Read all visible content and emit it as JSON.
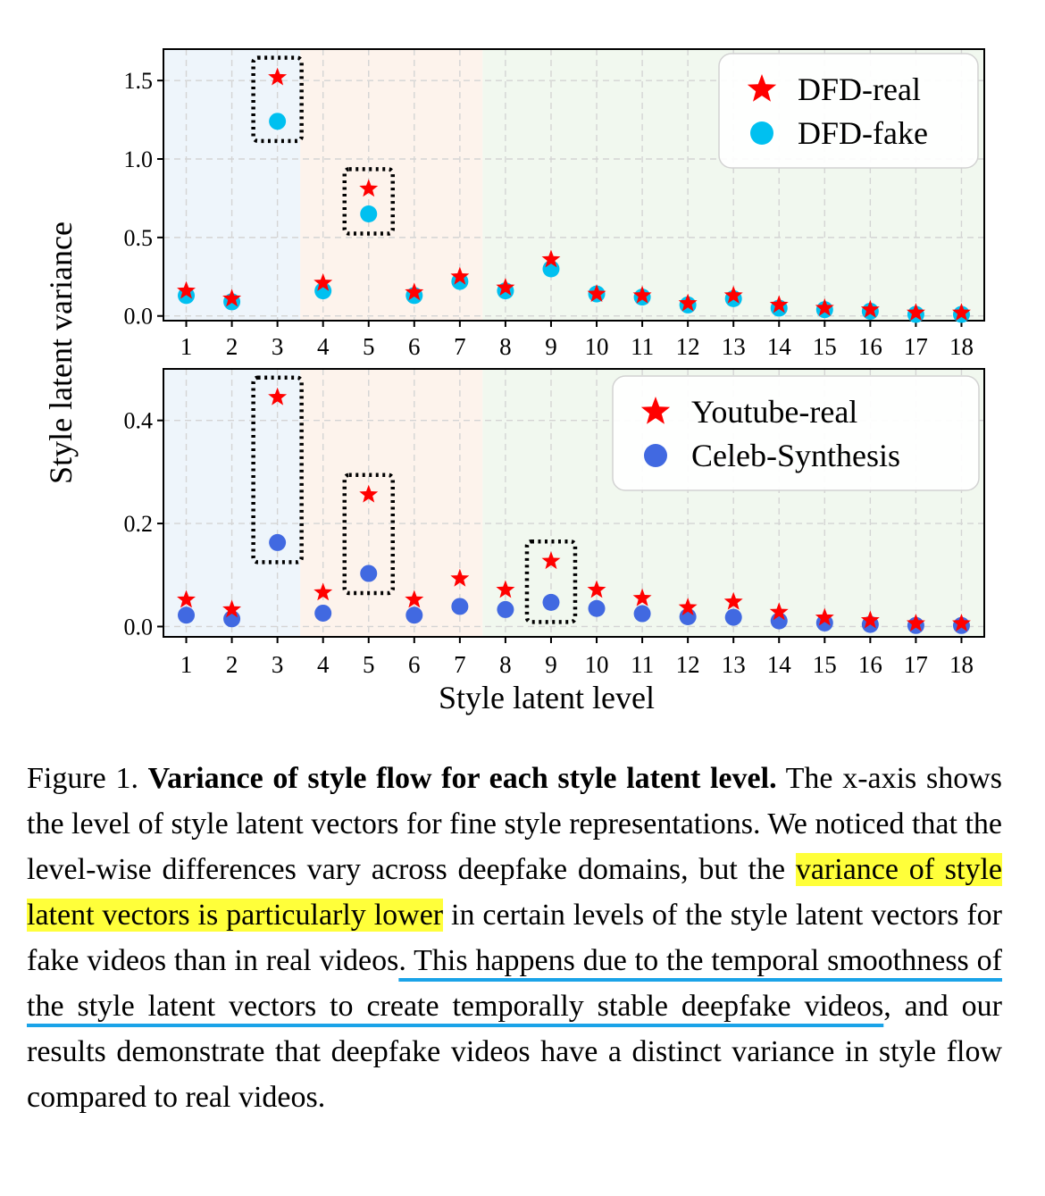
{
  "y_axis_label": "Style latent variance",
  "x_axis_label": "Style latent level",
  "chart_data": [
    {
      "type": "scatter",
      "x": [
        1,
        2,
        3,
        4,
        5,
        6,
        7,
        8,
        9,
        10,
        11,
        12,
        13,
        14,
        15,
        16,
        17,
        18
      ],
      "ylim": [
        -0.03,
        1.7
      ],
      "yticks": [
        "0.0",
        "0.5",
        "1.0",
        "1.5"
      ],
      "ytick_values": [
        0,
        0.5,
        1.0,
        1.5
      ],
      "grid": true,
      "legend_position": "top-right",
      "highlight_levels": [
        3,
        5
      ],
      "shaded_bands": [
        {
          "from": 0.5,
          "to": 3.5,
          "color": "#eef5fb"
        },
        {
          "from": 3.5,
          "to": 7.5,
          "color": "#fdf3ec"
        },
        {
          "from": 7.5,
          "to": 18.5,
          "color": "#f1f8ef"
        }
      ],
      "series": [
        {
          "name": "DFD-real",
          "marker": "star",
          "color": "#ff0000",
          "values": [
            0.16,
            0.11,
            1.52,
            0.21,
            0.81,
            0.15,
            0.25,
            0.18,
            0.36,
            0.14,
            0.13,
            0.08,
            0.13,
            0.07,
            0.05,
            0.04,
            0.02,
            0.02
          ]
        },
        {
          "name": "DFD-fake",
          "marker": "circle",
          "color": "#00c0f0",
          "values": [
            0.13,
            0.09,
            1.24,
            0.16,
            0.65,
            0.13,
            0.22,
            0.16,
            0.3,
            0.14,
            0.12,
            0.07,
            0.11,
            0.05,
            0.04,
            0.03,
            0.01,
            0.01
          ]
        }
      ]
    },
    {
      "type": "scatter",
      "x": [
        1,
        2,
        3,
        4,
        5,
        6,
        7,
        8,
        9,
        10,
        11,
        12,
        13,
        14,
        15,
        16,
        17,
        18
      ],
      "ylim": [
        -0.02,
        0.5
      ],
      "yticks": [
        "0.0",
        "0.2",
        "0.4"
      ],
      "ytick_values": [
        0,
        0.2,
        0.4
      ],
      "grid": true,
      "legend_position": "top-right",
      "highlight_levels": [
        3,
        5,
        9
      ],
      "shaded_bands": [
        {
          "from": 0.5,
          "to": 3.5,
          "color": "#eef5fb"
        },
        {
          "from": 3.5,
          "to": 7.5,
          "color": "#fdf3ec"
        },
        {
          "from": 7.5,
          "to": 18.5,
          "color": "#f1f8ef"
        }
      ],
      "series": [
        {
          "name": "Youtube-real",
          "marker": "star",
          "color": "#ff0000",
          "values": [
            0.052,
            0.033,
            0.445,
            0.066,
            0.256,
            0.052,
            0.093,
            0.071,
            0.127,
            0.071,
            0.055,
            0.037,
            0.048,
            0.028,
            0.017,
            0.012,
            0.006,
            0.006
          ]
        },
        {
          "name": "Celeb-Synthesis",
          "marker": "circle",
          "color": "#4169e1",
          "values": [
            0.022,
            0.015,
            0.163,
            0.026,
            0.103,
            0.022,
            0.039,
            0.033,
            0.047,
            0.035,
            0.025,
            0.019,
            0.018,
            0.011,
            0.007,
            0.004,
            0.002,
            0.002
          ]
        }
      ]
    }
  ],
  "caption": {
    "prefix": "Figure 1. ",
    "bold_title": "Variance of style flow for each style latent level.",
    "part1": " The x-axis shows the level of style latent vectors for fine style representations. We noticed that the level-wise differences vary across deepfake domains, but the ",
    "highlighted": "variance of style latent vectors is particularly lower",
    "part2": " in certain levels of the style latent vectors for fake videos than in real videos",
    "underlined": ". This happens due to the temporal smoothness of the style latent vectors to create temporally stable deepfake videos",
    "part3": ", and our results demonstrate that deepfake videos have a distinct variance in style flow compared to real videos."
  }
}
